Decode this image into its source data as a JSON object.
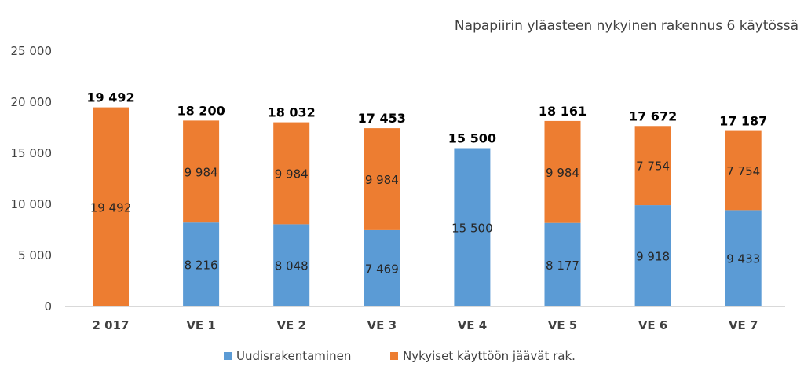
{
  "chart_data": {
    "type": "bar",
    "stacked": true,
    "title": "Napapiirin yläasteen nykyinen rakennus 6 käytössä",
    "categories": [
      "2 017",
      "VE 1",
      "VE 2",
      "VE 3",
      "VE 4",
      "VE 5",
      "VE 6",
      "VE 7"
    ],
    "series": [
      {
        "name": "Uudisrakentaminen",
        "color": "#5B9BD5",
        "values": [
          0,
          8216,
          8048,
          7469,
          15500,
          8177,
          9918,
          9433
        ],
        "labels": [
          "",
          "8 216",
          "8 048",
          "7 469",
          "15 500",
          "8 177",
          "9 918",
          "9 433"
        ]
      },
      {
        "name": "Nykyiset käyttöön jäävät rak.",
        "color": "#ED7D31",
        "values": [
          19492,
          9984,
          9984,
          9984,
          0,
          9984,
          7754,
          7754
        ],
        "labels": [
          "19 492",
          "9 984",
          "9 984",
          "9 984",
          "",
          "9 984",
          "7 754",
          "7 754"
        ]
      }
    ],
    "totals": [
      19492,
      18200,
      18032,
      17453,
      15500,
      18161,
      17672,
      17187
    ],
    "total_labels": [
      "19 492",
      "18 200",
      "18 032",
      "17 453",
      "15 500",
      "18 161",
      "17 672",
      "17 187"
    ],
    "ylim": [
      0,
      25000
    ],
    "yticks": [
      0,
      5000,
      10000,
      15000,
      20000,
      25000
    ],
    "ytick_labels": [
      "0",
      "5 000",
      "10 000",
      "15 000",
      "20 000",
      "25 000"
    ],
    "xlabel": "",
    "ylabel": "",
    "grid": false,
    "legend": "bottom"
  }
}
